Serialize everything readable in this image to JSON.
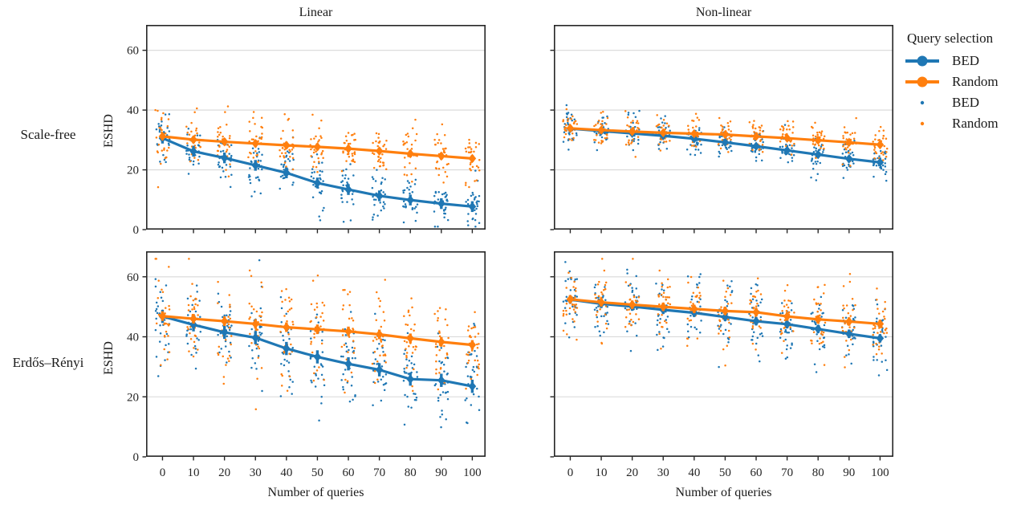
{
  "figure": {
    "col_titles": [
      "Linear",
      "Non-linear"
    ],
    "row_labels": [
      "Scale-free",
      "Erdős–Rényi"
    ],
    "ylabel": "ESHD",
    "xlabel": "Number of queries"
  },
  "legend": {
    "title": "Query selection",
    "entries": [
      {
        "label": "BED",
        "kind": "line",
        "color": "#1f77b4"
      },
      {
        "label": "Random",
        "kind": "line",
        "color": "#ff7f0e"
      },
      {
        "label": "BED",
        "kind": "dot",
        "color": "#1f77b4"
      },
      {
        "label": "Random",
        "kind": "dot",
        "color": "#ff7f0e"
      }
    ]
  },
  "style": {
    "bed_color": "#1f77b4",
    "random_color": "#ff7f0e",
    "grid_color": "#d8d8d8",
    "spine_color": "#262626",
    "text_color": "#262626"
  },
  "chart_data": [
    {
      "type": "line",
      "row_label": "Scale-free",
      "col_label": "Linear",
      "xlabel": "Number of queries",
      "ylabel": "ESHD",
      "x": [
        0,
        10,
        20,
        30,
        40,
        50,
        60,
        70,
        80,
        90,
        100
      ],
      "xticks": [
        0,
        10,
        20,
        30,
        40,
        50,
        60,
        70,
        80,
        90,
        100
      ],
      "yticks": [
        0,
        20,
        40,
        60
      ],
      "xlim": [
        -5.3,
        104.3
      ],
      "ylim": [
        0,
        68.5
      ],
      "grid": "horizontal",
      "scatter_points_per_x": 30,
      "series": [
        {
          "name": "BED",
          "color": "#1f77b4",
          "means": [
            30.6,
            26.2,
            24.0,
            21.5,
            19.0,
            15.6,
            13.4,
            11.3,
            9.9,
            8.7,
            7.7
          ],
          "ci": 1.8,
          "scatter_sd": 4.3
        },
        {
          "name": "Random",
          "color": "#ff7f0e",
          "means": [
            31.2,
            30.1,
            29.4,
            28.8,
            28.2,
            27.7,
            27.1,
            26.3,
            25.4,
            24.6,
            23.8
          ],
          "ci": 1.2,
          "scatter_sd": 4.3
        }
      ]
    },
    {
      "type": "line",
      "row_label": "Scale-free",
      "col_label": "Non-linear",
      "xlabel": "Number of queries",
      "ylabel": "ESHD",
      "x": [
        0,
        10,
        20,
        30,
        40,
        50,
        60,
        70,
        80,
        90,
        100
      ],
      "xticks": [
        0,
        10,
        20,
        30,
        40,
        50,
        60,
        70,
        80,
        90,
        100
      ],
      "yticks": [
        0,
        20,
        40,
        60
      ],
      "xlim": [
        -5.3,
        104.3
      ],
      "ylim": [
        0,
        68.5
      ],
      "grid": "horizontal",
      "scatter_points_per_x": 30,
      "series": [
        {
          "name": "BED",
          "color": "#1f77b4",
          "means": [
            33.8,
            33.0,
            32.2,
            31.4,
            30.4,
            29.2,
            27.9,
            26.5,
            25.1,
            23.7,
            22.5
          ],
          "ci": 1.0,
          "scatter_sd": 2.7
        },
        {
          "name": "Random",
          "color": "#ff7f0e",
          "means": [
            33.9,
            33.3,
            32.8,
            32.4,
            32.1,
            31.8,
            31.2,
            30.6,
            29.9,
            29.2,
            28.4
          ],
          "ci": 1.0,
          "scatter_sd": 2.7
        }
      ]
    },
    {
      "type": "line",
      "row_label": "Erdős–Rényi",
      "col_label": "Linear",
      "xlabel": "Number of queries",
      "ylabel": "ESHD",
      "x": [
        0,
        10,
        20,
        30,
        40,
        50,
        60,
        70,
        80,
        90,
        100
      ],
      "xticks": [
        0,
        10,
        20,
        30,
        40,
        50,
        60,
        70,
        80,
        90,
        100
      ],
      "yticks": [
        0,
        20,
        40,
        60
      ],
      "xlim": [
        -5.3,
        104.3
      ],
      "ylim": [
        0,
        68.5
      ],
      "grid": "horizontal",
      "scatter_points_per_x": 30,
      "series": [
        {
          "name": "BED",
          "color": "#1f77b4",
          "means": [
            46.8,
            44.0,
            41.5,
            39.7,
            36.1,
            33.3,
            31.0,
            29.0,
            25.9,
            25.5,
            23.5
          ],
          "ci": 2.2,
          "scatter_sd": 8.2
        },
        {
          "name": "Random",
          "color": "#ff7f0e",
          "means": [
            46.9,
            46.0,
            45.2,
            44.3,
            43.2,
            42.5,
            41.8,
            40.8,
            39.5,
            38.3,
            37.3
          ],
          "ci": 1.6,
          "scatter_sd": 8.2
        }
      ]
    },
    {
      "type": "line",
      "row_label": "Erdős–Rényi",
      "col_label": "Non-linear",
      "xlabel": "Number of queries",
      "ylabel": "ESHD",
      "x": [
        0,
        10,
        20,
        30,
        40,
        50,
        60,
        70,
        80,
        90,
        100
      ],
      "xticks": [
        0,
        10,
        20,
        30,
        40,
        50,
        60,
        70,
        80,
        90,
        100
      ],
      "yticks": [
        0,
        20,
        40,
        60
      ],
      "xlim": [
        -5.3,
        104.3
      ],
      "ylim": [
        0,
        68.5
      ],
      "grid": "horizontal",
      "scatter_points_per_x": 30,
      "series": [
        {
          "name": "BED",
          "color": "#1f77b4",
          "means": [
            52.4,
            51.0,
            50.1,
            49.0,
            48.0,
            46.6,
            45.2,
            44.2,
            42.6,
            41.0,
            39.5
          ],
          "ci": 1.4,
          "scatter_sd": 6.0
        },
        {
          "name": "Random",
          "color": "#ff7f0e",
          "means": [
            52.5,
            51.5,
            50.7,
            50.0,
            49.3,
            48.6,
            48.2,
            46.8,
            45.8,
            45.1,
            44.3
          ],
          "ci": 1.4,
          "scatter_sd": 6.0
        }
      ]
    }
  ]
}
